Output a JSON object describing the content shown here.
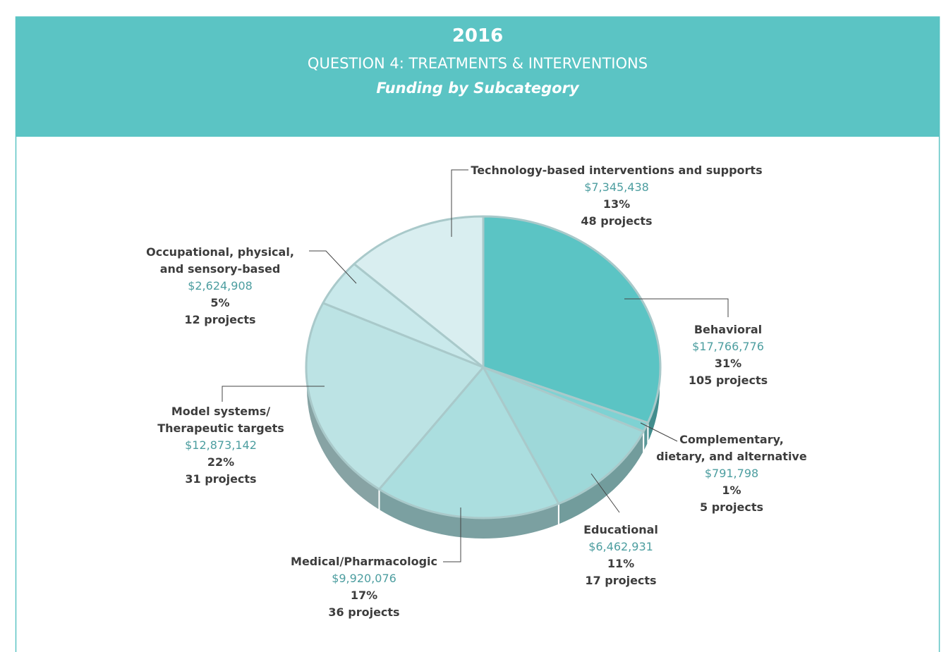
{
  "chart_data": {
    "type": "pie",
    "title": "2016",
    "subtitle": "QUESTION 4: TREATMENTS & INTERVENTIONS",
    "heading": "Funding by Subcategory",
    "categories": [
      "Behavioral",
      "Complementary,\ndietary, and alternative",
      "Educational",
      "Medical/Pharmacologic",
      "Model systems/\nTherapeutic targets",
      "Occupational, physical,\nand sensory-based",
      "Technology-based interventions and supports"
    ],
    "values": [
      31,
      1,
      11,
      17,
      22,
      5,
      13
    ],
    "value_labels": [
      "31%",
      "1%",
      "11%",
      "17%",
      "22%",
      "5%",
      "13%"
    ],
    "funding_labels": [
      "$17,766,776",
      "$791,798",
      "$6,462,931",
      "$9,920,076",
      "$12,873,142",
      "$2,624,908",
      "$7,345,438"
    ],
    "project_labels": [
      "105 projects",
      "5 projects",
      "17 projects",
      "36 projects",
      "31 projects",
      "12 projects",
      "48 projects"
    ],
    "colors": [
      "#5bc4c4",
      "#7ed2d3",
      "#9ed8d9",
      "#abdedf",
      "#bce3e4",
      "#c9e9eb",
      "#d9eef0"
    ]
  }
}
